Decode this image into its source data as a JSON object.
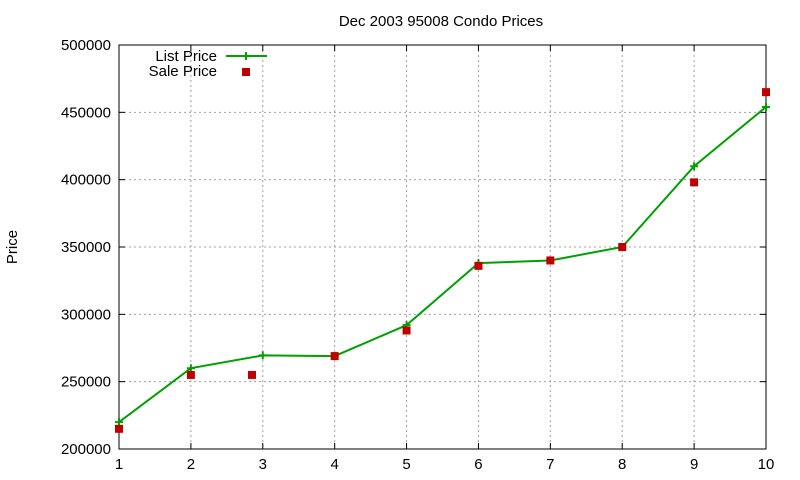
{
  "chart_data": {
    "type": "line",
    "title": "Dec 2003 95008 Condo Prices",
    "xlabel": "",
    "ylabel": "Price",
    "x": [
      1,
      2,
      3,
      4,
      5,
      6,
      7,
      8,
      9,
      10
    ],
    "xlim": [
      1,
      10
    ],
    "ylim": [
      200000,
      500000
    ],
    "xticks": [
      "1",
      "2",
      "3",
      "4",
      "5",
      "6",
      "7",
      "8",
      "9",
      "10"
    ],
    "yticks": [
      "200000",
      "250000",
      "300000",
      "350000",
      "400000",
      "450000",
      "500000"
    ],
    "grid": true,
    "legend_position": "top-left",
    "series": [
      {
        "name": "List Price",
        "style": "line-points",
        "color": "#00a000",
        "values": [
          220000,
          260000,
          269500,
          269000,
          292000,
          338000,
          340000,
          350000,
          410000,
          454000
        ]
      },
      {
        "name": "Sale Price",
        "style": "points",
        "color": "#c00000",
        "x": [
          1,
          2,
          2.85,
          4,
          5,
          6,
          7,
          8,
          9,
          10
        ],
        "values": [
          215000,
          255000,
          255000,
          269000,
          288000,
          336000,
          340000,
          350000,
          398000,
          465000
        ]
      }
    ]
  }
}
